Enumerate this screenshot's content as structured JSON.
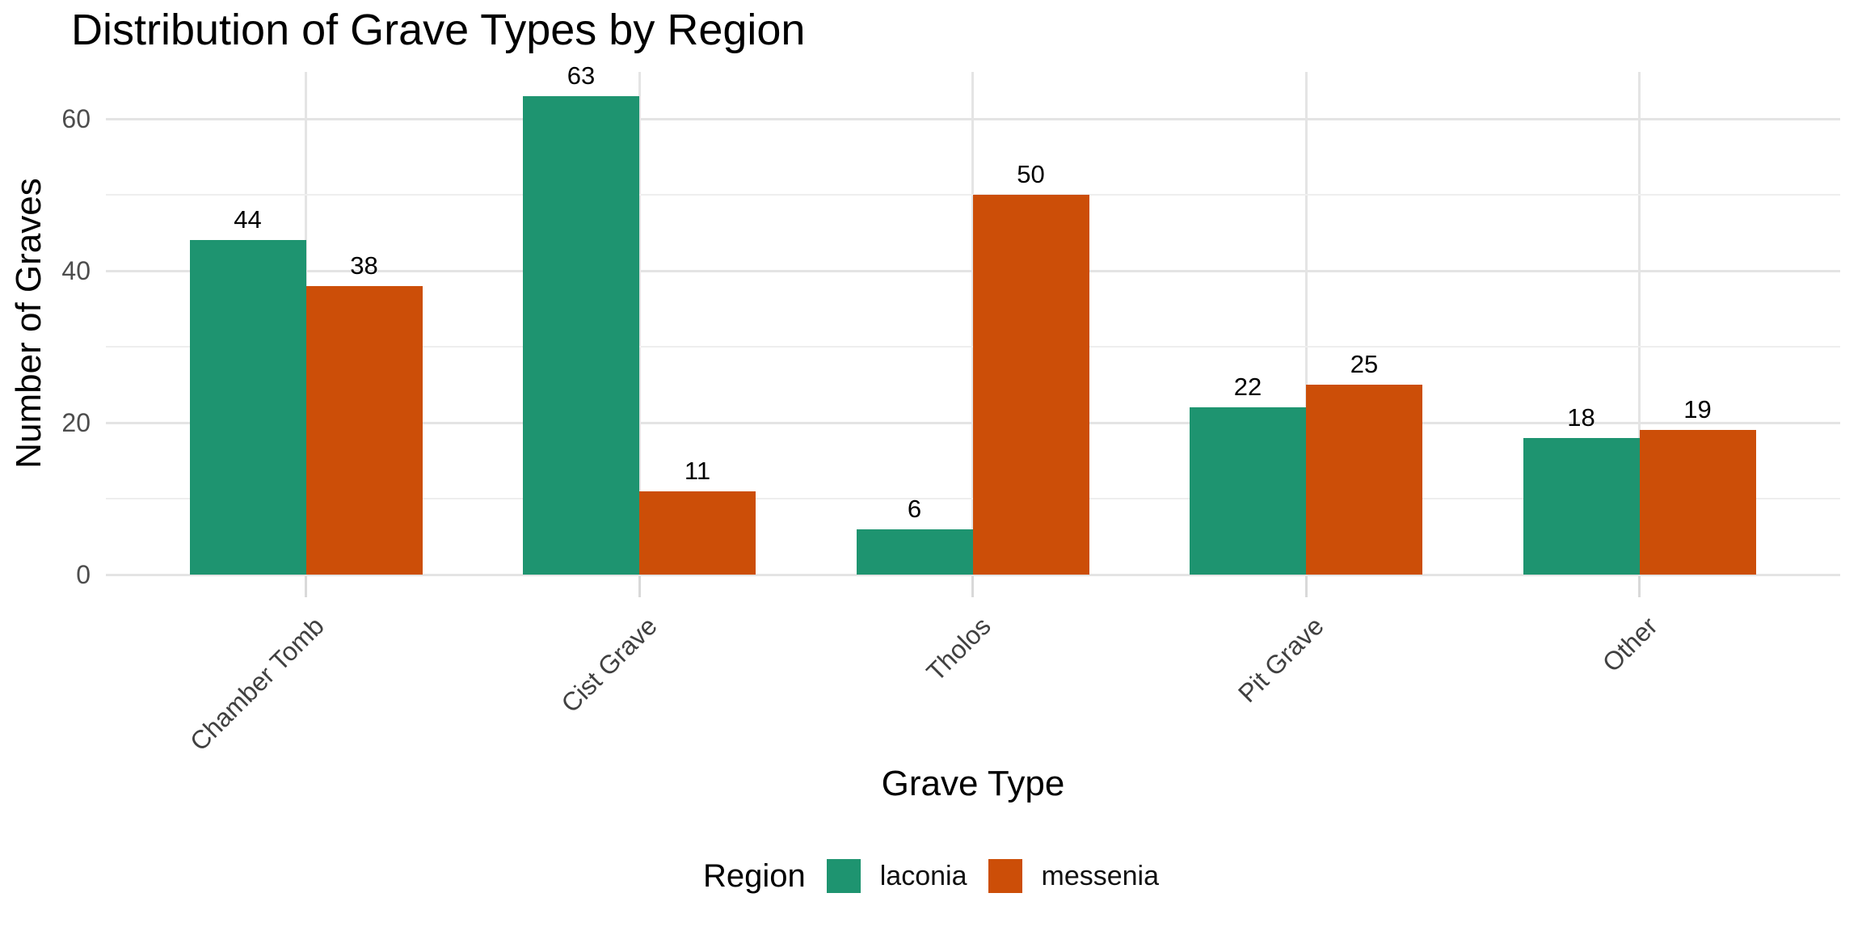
{
  "chart_data": {
    "type": "bar",
    "title": "Distribution of Grave Types by Region",
    "xlabel": "Grave Type",
    "ylabel": "Number of Graves",
    "categories": [
      "Chamber Tomb",
      "Cist Grave",
      "Tholos",
      "Pit Grave",
      "Other"
    ],
    "series": [
      {
        "name": "laconia",
        "color": "#1e9470",
        "values": [
          44,
          63,
          6,
          22,
          18
        ]
      },
      {
        "name": "messenia",
        "color": "#cc4e08",
        "values": [
          38,
          11,
          50,
          25,
          19
        ]
      }
    ],
    "bar_value_labels": true,
    "ylim": [
      0,
      66
    ],
    "yticks_major": [
      0,
      20,
      40,
      60
    ],
    "yticks_minor": [
      10,
      30,
      50
    ],
    "grid": true,
    "legend_title": "Region",
    "legend_position": "bottom",
    "style": {
      "background": "#ffffff",
      "grid_major_color": "#e4e4e4",
      "grid_minor_color": "#eeeeee",
      "tick_color": "#d9d9d9",
      "axis_text_color": "#4d4d4d",
      "category_text_color": "#404040",
      "text_color": "#000000"
    }
  }
}
